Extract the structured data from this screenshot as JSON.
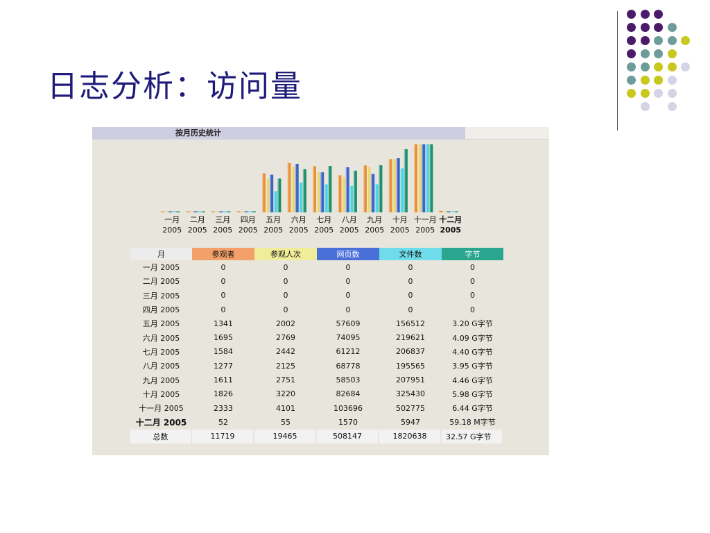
{
  "slide": {
    "title": "日志分析：访问量"
  },
  "screenshot": {
    "header_title": "按月历史统计",
    "table": {
      "headers": [
        "月",
        "参观者",
        "参观人次",
        "网页数",
        "文件数",
        "字节"
      ],
      "rows": [
        [
          "一月 2005",
          "0",
          "0",
          "0",
          "0",
          "0"
        ],
        [
          "二月 2005",
          "0",
          "0",
          "0",
          "0",
          "0"
        ],
        [
          "三月 2005",
          "0",
          "0",
          "0",
          "0",
          "0"
        ],
        [
          "四月 2005",
          "0",
          "0",
          "0",
          "0",
          "0"
        ],
        [
          "五月 2005",
          "1341",
          "2002",
          "57609",
          "156512",
          "3.20 G字节"
        ],
        [
          "六月 2005",
          "1695",
          "2769",
          "74095",
          "219621",
          "4.09 G字节"
        ],
        [
          "七月 2005",
          "1584",
          "2442",
          "61212",
          "206837",
          "4.40 G字节"
        ],
        [
          "八月 2005",
          "1277",
          "2125",
          "68778",
          "195565",
          "3.95 G字节"
        ],
        [
          "九月 2005",
          "1611",
          "2751",
          "58503",
          "207951",
          "4.46 G字节"
        ],
        [
          "十月 2005",
          "1826",
          "3220",
          "82684",
          "325430",
          "5.98 G字节"
        ],
        [
          "十一月 2005",
          "2333",
          "4101",
          "103696",
          "502775",
          "6.44 G字节"
        ],
        [
          "十二月 2005",
          "52",
          "55",
          "1570",
          "5947",
          "59.18 M字节"
        ]
      ],
      "total": [
        "总数",
        "11719",
        "19465",
        "508147",
        "1820638",
        "32.57 G字节"
      ]
    }
  },
  "chart_data": {
    "type": "bar",
    "categories": [
      {
        "month": "一月",
        "year": "2005"
      },
      {
        "month": "二月",
        "year": "2005"
      },
      {
        "month": "三月",
        "year": "2005"
      },
      {
        "month": "四月",
        "year": "2005"
      },
      {
        "month": "五月",
        "year": "2005"
      },
      {
        "month": "六月",
        "year": "2005"
      },
      {
        "month": "七月",
        "year": "2005"
      },
      {
        "month": "八月",
        "year": "2005"
      },
      {
        "month": "九月",
        "year": "2005"
      },
      {
        "month": "十月",
        "year": "2005"
      },
      {
        "month": "十一月",
        "year": "2005"
      },
      {
        "month": "十二月",
        "year": "2005"
      }
    ],
    "highlight_index": 11,
    "series": [
      {
        "color": "#e8913a",
        "values": [
          0,
          0,
          0,
          0,
          1341,
          1695,
          1584,
          1277,
          1611,
          1826,
          2333,
          52
        ]
      },
      {
        "color": "#e6d77a",
        "values": [
          0,
          0,
          0,
          0,
          2002,
          2769,
          2442,
          2125,
          2751,
          3220,
          4101,
          55
        ]
      },
      {
        "color": "#3d63c9",
        "values": [
          0,
          0,
          0,
          0,
          57609,
          74095,
          61212,
          68778,
          58503,
          82684,
          103696,
          1570
        ]
      },
      {
        "color": "#4fd3df",
        "values": [
          0,
          0,
          0,
          0,
          156512,
          219621,
          206837,
          195565,
          207951,
          325430,
          502775,
          5947
        ]
      },
      {
        "color": "#1b8f6e",
        "values": [
          0,
          0,
          0,
          0,
          3.2,
          4.09,
          4.4,
          3.95,
          4.46,
          5.98,
          6.44,
          0.058
        ]
      }
    ]
  },
  "decor": {
    "dot_colors": {
      "purple": "#4b1a6b",
      "teal": "#6e9c9a",
      "lime": "#c8c81e",
      "lavender": "#d4d4e6"
    },
    "dot_grid": [
      [
        "purple",
        "purple",
        "purple",
        null,
        null
      ],
      [
        "purple",
        "purple",
        "purple",
        "teal",
        null
      ],
      [
        "purple",
        "purple",
        "teal",
        "teal",
        "lime"
      ],
      [
        "purple",
        "teal",
        "teal",
        "lime",
        null
      ],
      [
        "teal",
        "teal",
        "lime",
        "lime",
        "lavender"
      ],
      [
        "teal",
        "lime",
        "lime",
        "lavender",
        null
      ],
      [
        "lime",
        "lime",
        "lavender",
        "lavender",
        null
      ],
      [
        null,
        "lavender",
        null,
        "lavender",
        null
      ]
    ]
  }
}
